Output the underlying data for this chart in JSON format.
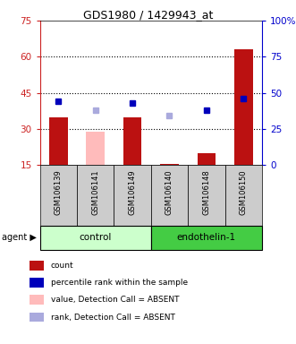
{
  "title": "GDS1980 / 1429943_at",
  "samples": [
    "GSM106139",
    "GSM106141",
    "GSM106149",
    "GSM106140",
    "GSM106148",
    "GSM106150"
  ],
  "bar_values": [
    35,
    29,
    35,
    15.5,
    20,
    63
  ],
  "bar_colors": [
    "#bb1111",
    "#ffbbbb",
    "#bb1111",
    "#bb1111",
    "#bb1111",
    "#bb1111"
  ],
  "rank_values": [
    44,
    38,
    43,
    34,
    38,
    46
  ],
  "rank_colors": [
    "#0000bb",
    "#aaaadd",
    "#0000bb",
    "#aaaadd",
    "#0000bb",
    "#0000bb"
  ],
  "ylim_left": [
    15,
    75
  ],
  "ylim_right": [
    0,
    100
  ],
  "yticks_left": [
    15,
    30,
    45,
    60,
    75
  ],
  "yticks_right": [
    0,
    25,
    50,
    75,
    100
  ],
  "grid_values": [
    30,
    45,
    60
  ],
  "control_color": "#ccffcc",
  "endothelin_color": "#44cc44",
  "left_axis_color": "#cc2222",
  "right_axis_color": "#0000cc",
  "legend_items": [
    {
      "label": "count",
      "color": "#bb1111"
    },
    {
      "label": "percentile rank within the sample",
      "color": "#0000bb"
    },
    {
      "label": "value, Detection Call = ABSENT",
      "color": "#ffbbbb"
    },
    {
      "label": "rank, Detection Call = ABSENT",
      "color": "#aaaadd"
    }
  ]
}
